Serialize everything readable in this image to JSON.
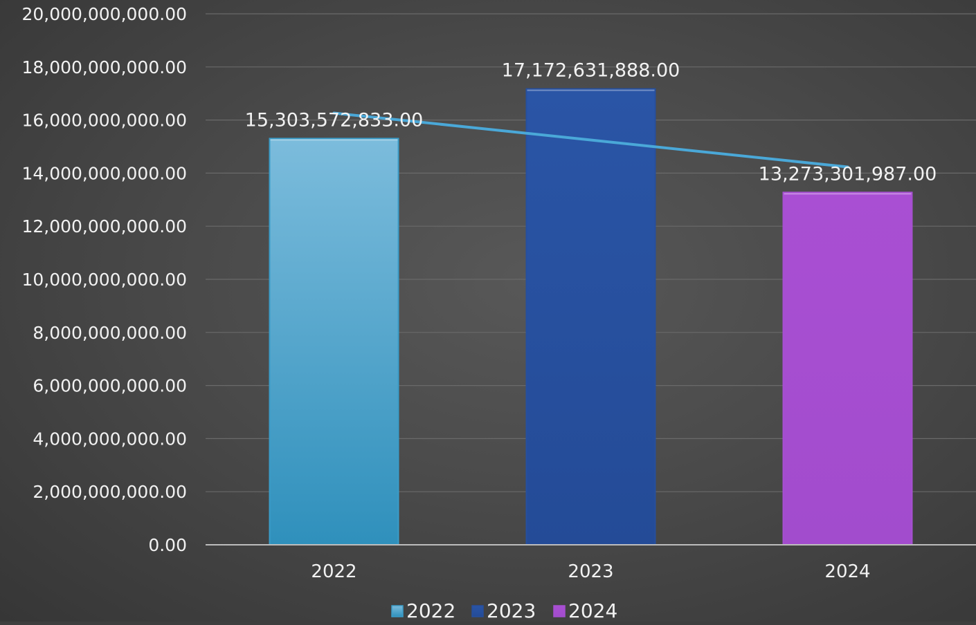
{
  "chart_data": {
    "type": "bar",
    "categories": [
      "2022",
      "2023",
      "2024"
    ],
    "series": [
      {
        "name": "2022",
        "values": [
          15303572833.0,
          null,
          null
        ],
        "color": "#3a9cc8"
      },
      {
        "name": "2023",
        "values": [
          null,
          17172631888.0,
          null
        ],
        "color": "#264f9e"
      },
      {
        "name": "2024",
        "values": [
          null,
          null,
          13273301987.0
        ],
        "color": "#a64fd1"
      }
    ],
    "trendline": {
      "type": "linear",
      "color": "#4aa8d8",
      "values": [
        16261850000,
        15246760000,
        14231670000
      ]
    },
    "data_labels": [
      "15,303,572,833.00",
      "17,172,631,888.00",
      "13,273,301,987.00"
    ],
    "y_ticks": [
      "0.00",
      "2,000,000,000.00",
      "4,000,000,000.00",
      "6,000,000,000.00",
      "8,000,000,000.00",
      "10,000,000,000.00",
      "12,000,000,000.00",
      "14,000,000,000.00",
      "16,000,000,000.00",
      "18,000,000,000.00",
      "20,000,000,000.00"
    ],
    "ylim": [
      0,
      20000000000
    ],
    "grid": true,
    "legend": {
      "placement": "bottom",
      "entries": [
        "2022",
        "2023",
        "2024"
      ]
    },
    "title": "",
    "xlabel": "",
    "ylabel": ""
  }
}
